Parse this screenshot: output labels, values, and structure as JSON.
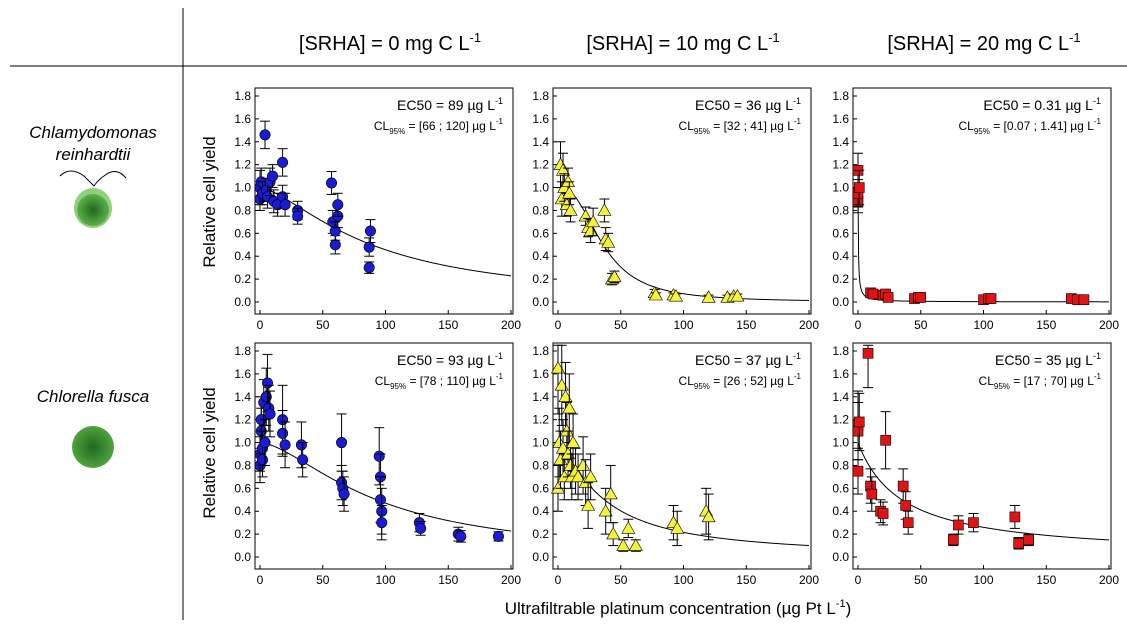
{
  "header": {
    "col_titles": [
      {
        "main": "[SRHA] = 0 mg C L",
        "sup": "-1"
      },
      {
        "main": "[SRHA] = 10 mg C L",
        "sup": "-1"
      },
      {
        "main": "[SRHA] = 20 mg C L",
        "sup": "-1"
      }
    ]
  },
  "rows": [
    {
      "species_lines": [
        "Chlamydomonas",
        "reinhardtii"
      ],
      "ylabel": "Relative cell yield"
    },
    {
      "species_lines": [
        "Chlorella fusca"
      ],
      "ylabel": "Relative cell yield"
    }
  ],
  "xlabel": {
    "main": "Ultrafiltrable platinum concentration (µg Pt L",
    "sup": "-1",
    "end": ")"
  },
  "colors": {
    "series0": "#1b1bd6",
    "series1": "#f5f23a",
    "series2": "#e01414",
    "curve": "#000000",
    "cell_dark": "#2e7d2e",
    "cell_light": "#7cc46a"
  },
  "chart_data": [
    {
      "type": "scatter",
      "row": 0,
      "col": 0,
      "marker": "circle",
      "color": "#1b1bd6",
      "ec50": {
        "label": "EC50 = 89 µg L",
        "sup": "-1"
      },
      "cl": {
        "pre": "CL",
        "sub": "95%",
        "post": " = [66 ; 120] µg L",
        "sup": "-1"
      },
      "ylim": [
        0,
        1.8
      ],
      "xlim": [
        0,
        200
      ],
      "yticks": [
        "0.0",
        "0.2",
        "0.4",
        "0.6",
        "0.8",
        "1.0",
        "1.2",
        "1.4",
        "1.6",
        "1.8"
      ],
      "xticks": [
        "0",
        "50",
        "100",
        "150",
        "200"
      ],
      "fit": {
        "ec50": 89,
        "slope": 1.5,
        "top": 1.0
      },
      "points": [
        [
          0,
          0.9,
          0.1
        ],
        [
          0,
          1.0,
          0.15
        ],
        [
          1,
          1.05,
          0.12
        ],
        [
          2,
          0.95,
          0.1
        ],
        [
          4,
          1.46,
          0.12
        ],
        [
          5,
          0.98,
          0.1
        ],
        [
          6,
          0.92,
          0.1
        ],
        [
          8,
          1.05,
          0.12
        ],
        [
          10,
          1.1,
          0.1
        ],
        [
          11,
          0.88,
          0.1
        ],
        [
          14,
          0.85,
          0.1
        ],
        [
          18,
          1.22,
          0.12
        ],
        [
          18,
          0.92,
          0.1
        ],
        [
          20,
          0.85,
          0.1
        ],
        [
          30,
          0.8,
          0.08
        ],
        [
          30,
          0.75,
          0.07
        ],
        [
          57,
          1.04,
          0.1
        ],
        [
          58,
          0.7,
          0.1
        ],
        [
          60,
          0.5,
          0.08
        ],
        [
          60,
          0.62,
          0.08
        ],
        [
          62,
          0.75,
          0.1
        ],
        [
          62,
          0.85,
          0.1
        ],
        [
          87,
          0.3,
          0.05
        ],
        [
          87,
          0.48,
          0.08
        ],
        [
          88,
          0.62,
          0.1
        ]
      ]
    },
    {
      "type": "scatter",
      "row": 0,
      "col": 1,
      "marker": "triangle",
      "color": "#f5f23a",
      "ec50": {
        "label": "EC50 = 36 µg L",
        "sup": "-1"
      },
      "cl": {
        "pre": "CL",
        "sub": "95%",
        "post": " = [32 ; 41] µg L",
        "sup": "-1"
      },
      "ylim": [
        0,
        1.8
      ],
      "xlim": [
        0,
        200
      ],
      "yticks": [
        "0.0",
        "0.2",
        "0.4",
        "0.6",
        "0.8",
        "1.0",
        "1.2",
        "1.4",
        "1.6",
        "1.8"
      ],
      "xticks": [
        "0",
        "50",
        "100",
        "150",
        "200"
      ],
      "fit": {
        "ec50": 36,
        "slope": 2.5,
        "top": 1.0
      },
      "points": [
        [
          2,
          1.2,
          0.2
        ],
        [
          3,
          0.9,
          0.15
        ],
        [
          4,
          1.15,
          0.15
        ],
        [
          5,
          1.0,
          0.12
        ],
        [
          7,
          0.85,
          0.1
        ],
        [
          8,
          1.05,
          0.12
        ],
        [
          9,
          0.95,
          0.1
        ],
        [
          10,
          0.8,
          0.1
        ],
        [
          22,
          0.75,
          0.08
        ],
        [
          24,
          0.65,
          0.08
        ],
        [
          26,
          0.62,
          0.1
        ],
        [
          28,
          0.7,
          0.12
        ],
        [
          37,
          0.8,
          0.1
        ],
        [
          38,
          0.55,
          0.1
        ],
        [
          40,
          0.52,
          0.08
        ],
        [
          43,
          0.2,
          0.05
        ],
        [
          45,
          0.22,
          0.05
        ],
        [
          77,
          0.08,
          0.03
        ],
        [
          78,
          0.06,
          0.02
        ],
        [
          92,
          0.06,
          0.02
        ],
        [
          94,
          0.05,
          0.02
        ],
        [
          120,
          0.04,
          0.02
        ],
        [
          135,
          0.04,
          0.02
        ],
        [
          140,
          0.05,
          0.02
        ],
        [
          143,
          0.05,
          0.02
        ]
      ]
    },
    {
      "type": "scatter",
      "row": 0,
      "col": 2,
      "marker": "square",
      "color": "#e01414",
      "ec50": {
        "label": "EC50 = 0.31 µg L",
        "sup": "-1"
      },
      "cl": {
        "pre": "CL",
        "sub": "95%",
        "post": " = [0.07 ; 1.41] µg L",
        "sup": "-1"
      },
      "ylim": [
        0,
        1.8
      ],
      "xlim": [
        0,
        200
      ],
      "yticks": [
        "0.0",
        "0.2",
        "0.4",
        "0.6",
        "0.8",
        "1.0",
        "1.2",
        "1.4",
        "1.6",
        "1.8"
      ],
      "xticks": [
        "0",
        "50",
        "100",
        "150",
        "200"
      ],
      "fit": {
        "ec50": 0.31,
        "slope": 1.0,
        "top": 1.0
      },
      "points": [
        [
          0,
          0.88,
          0.1
        ],
        [
          0,
          0.95,
          0.12
        ],
        [
          0,
          1.15,
          0.15
        ],
        [
          1,
          1.0,
          0.15
        ],
        [
          10,
          0.08,
          0.02
        ],
        [
          12,
          0.07,
          0.02
        ],
        [
          20,
          0.06,
          0.02
        ],
        [
          22,
          0.07,
          0.02
        ],
        [
          24,
          0.04,
          0.02
        ],
        [
          45,
          0.03,
          0.02
        ],
        [
          48,
          0.04,
          0.02
        ],
        [
          50,
          0.04,
          0.02
        ],
        [
          100,
          0.02,
          0.02
        ],
        [
          104,
          0.03,
          0.02
        ],
        [
          106,
          0.03,
          0.02
        ],
        [
          170,
          0.03,
          0.02
        ],
        [
          175,
          0.02,
          0.02
        ],
        [
          180,
          0.02,
          0.02
        ]
      ]
    },
    {
      "type": "scatter",
      "row": 1,
      "col": 0,
      "marker": "circle",
      "color": "#1b1bd6",
      "ec50": {
        "label": "EC50 = 93 µg L",
        "sup": "-1"
      },
      "cl": {
        "pre": "CL",
        "sub": "95%",
        "post": " = [78 ; 110] µg L",
        "sup": "-1"
      },
      "ylim": [
        0,
        1.8
      ],
      "xlim": [
        0,
        200
      ],
      "yticks": [
        "0.0",
        "0.2",
        "0.4",
        "0.6",
        "0.8",
        "1.0",
        "1.2",
        "1.4",
        "1.6",
        "1.8"
      ],
      "xticks": [
        "0",
        "50",
        "100",
        "150",
        "200"
      ],
      "fit": {
        "ec50": 93,
        "slope": 1.6,
        "top": 1.0
      },
      "points": [
        [
          0,
          0.8,
          0.15
        ],
        [
          0,
          0.9,
          0.15
        ],
        [
          1,
          1.1,
          0.2
        ],
        [
          1,
          1.2,
          0.2
        ],
        [
          2,
          0.95,
          0.15
        ],
        [
          2,
          0.85,
          0.15
        ],
        [
          3,
          1.35,
          0.2
        ],
        [
          4,
          1.0,
          0.2
        ],
        [
          5,
          1.4,
          0.25
        ],
        [
          6,
          1.52,
          0.25
        ],
        [
          7,
          1.3,
          0.2
        ],
        [
          8,
          1.25,
          0.2
        ],
        [
          18,
          1.2,
          0.3
        ],
        [
          18,
          1.08,
          0.2
        ],
        [
          20,
          0.98,
          0.2
        ],
        [
          33,
          0.98,
          0.2
        ],
        [
          34,
          0.85,
          0.15
        ],
        [
          65,
          0.65,
          0.15
        ],
        [
          65,
          1.0,
          0.25
        ],
        [
          66,
          0.6,
          0.15
        ],
        [
          67,
          0.55,
          0.15
        ],
        [
          95,
          0.88,
          0.25
        ],
        [
          96,
          0.7,
          0.2
        ],
        [
          96,
          0.5,
          0.2
        ],
        [
          97,
          0.4,
          0.2
        ],
        [
          97,
          0.3,
          0.15
        ],
        [
          127,
          0.3,
          0.08
        ],
        [
          128,
          0.25,
          0.06
        ],
        [
          158,
          0.2,
          0.06
        ],
        [
          160,
          0.18,
          0.05
        ],
        [
          190,
          0.18,
          0.04
        ]
      ]
    },
    {
      "type": "scatter",
      "row": 1,
      "col": 1,
      "marker": "triangle",
      "color": "#f5f23a",
      "ec50": {
        "label": "EC50 = 37 µg L",
        "sup": "-1"
      },
      "cl": {
        "pre": "CL",
        "sub": "95%",
        "post": " = [26 ; 52] µg L",
        "sup": "-1"
      },
      "ylim": [
        0,
        1.8
      ],
      "xlim": [
        0,
        200
      ],
      "yticks": [
        "0.0",
        "0.2",
        "0.4",
        "0.6",
        "0.8",
        "1.0",
        "1.2",
        "1.4",
        "1.6",
        "1.8"
      ],
      "xticks": [
        "0",
        "50",
        "100",
        "150",
        "200"
      ],
      "fit": {
        "ec50": 37,
        "slope": 1.3,
        "top": 1.0
      },
      "points": [
        [
          0,
          1.65,
          0.4
        ],
        [
          0,
          0.6,
          0.2
        ],
        [
          1,
          1.0,
          0.3
        ],
        [
          2,
          0.85,
          0.25
        ],
        [
          3,
          1.5,
          0.35
        ],
        [
          4,
          0.95,
          0.25
        ],
        [
          5,
          0.7,
          0.2
        ],
        [
          6,
          1.4,
          0.3
        ],
        [
          7,
          1.1,
          0.25
        ],
        [
          8,
          0.9,
          0.2
        ],
        [
          9,
          1.3,
          0.3
        ],
        [
          10,
          0.8,
          0.2
        ],
        [
          11,
          0.7,
          0.2
        ],
        [
          12,
          1.0,
          0.25
        ],
        [
          14,
          0.75,
          0.2
        ],
        [
          16,
          0.7,
          0.2
        ],
        [
          20,
          0.8,
          0.25
        ],
        [
          22,
          0.65,
          0.2
        ],
        [
          24,
          0.45,
          0.2
        ],
        [
          26,
          0.7,
          0.2
        ],
        [
          38,
          0.4,
          0.2
        ],
        [
          42,
          0.55,
          0.25
        ],
        [
          44,
          0.2,
          0.1
        ],
        [
          52,
          0.1,
          0.05
        ],
        [
          56,
          0.25,
          0.08
        ],
        [
          62,
          0.1,
          0.05
        ],
        [
          92,
          0.3,
          0.15
        ],
        [
          95,
          0.25,
          0.15
        ],
        [
          118,
          0.4,
          0.2
        ],
        [
          120,
          0.35,
          0.2
        ]
      ]
    },
    {
      "type": "scatter",
      "row": 1,
      "col": 2,
      "marker": "square",
      "color": "#e01414",
      "ec50": {
        "label": "EC50 = 35 µg L",
        "sup": "-1"
      },
      "cl": {
        "pre": "CL",
        "sub": "95%",
        "post": " = [17 ; 70] µg L",
        "sup": "-1"
      },
      "ylim": [
        0,
        1.8
      ],
      "xlim": [
        0,
        200
      ],
      "yticks": [
        "0.0",
        "0.2",
        "0.4",
        "0.6",
        "0.8",
        "1.0",
        "1.2",
        "1.4",
        "1.6",
        "1.8"
      ],
      "xticks": [
        "0",
        "50",
        "100",
        "150",
        "200"
      ],
      "fit": {
        "ec50": 35,
        "slope": 1.0,
        "top": 1.0
      },
      "points": [
        [
          0,
          1.15,
          0.3
        ],
        [
          0,
          1.1,
          0.25
        ],
        [
          0,
          0.75,
          0.2
        ],
        [
          1,
          1.18,
          0.25
        ],
        [
          8,
          1.78,
          0.3
        ],
        [
          10,
          0.62,
          0.15
        ],
        [
          11,
          0.55,
          0.15
        ],
        [
          18,
          0.4,
          0.1
        ],
        [
          20,
          0.38,
          0.1
        ],
        [
          22,
          1.02,
          0.25
        ],
        [
          36,
          0.62,
          0.15
        ],
        [
          38,
          0.45,
          0.12
        ],
        [
          40,
          0.3,
          0.1
        ],
        [
          76,
          0.15,
          0.05
        ],
        [
          80,
          0.28,
          0.08
        ],
        [
          92,
          0.3,
          0.08
        ],
        [
          125,
          0.35,
          0.1
        ],
        [
          128,
          0.12,
          0.05
        ],
        [
          136,
          0.15,
          0.05
        ]
      ]
    }
  ]
}
